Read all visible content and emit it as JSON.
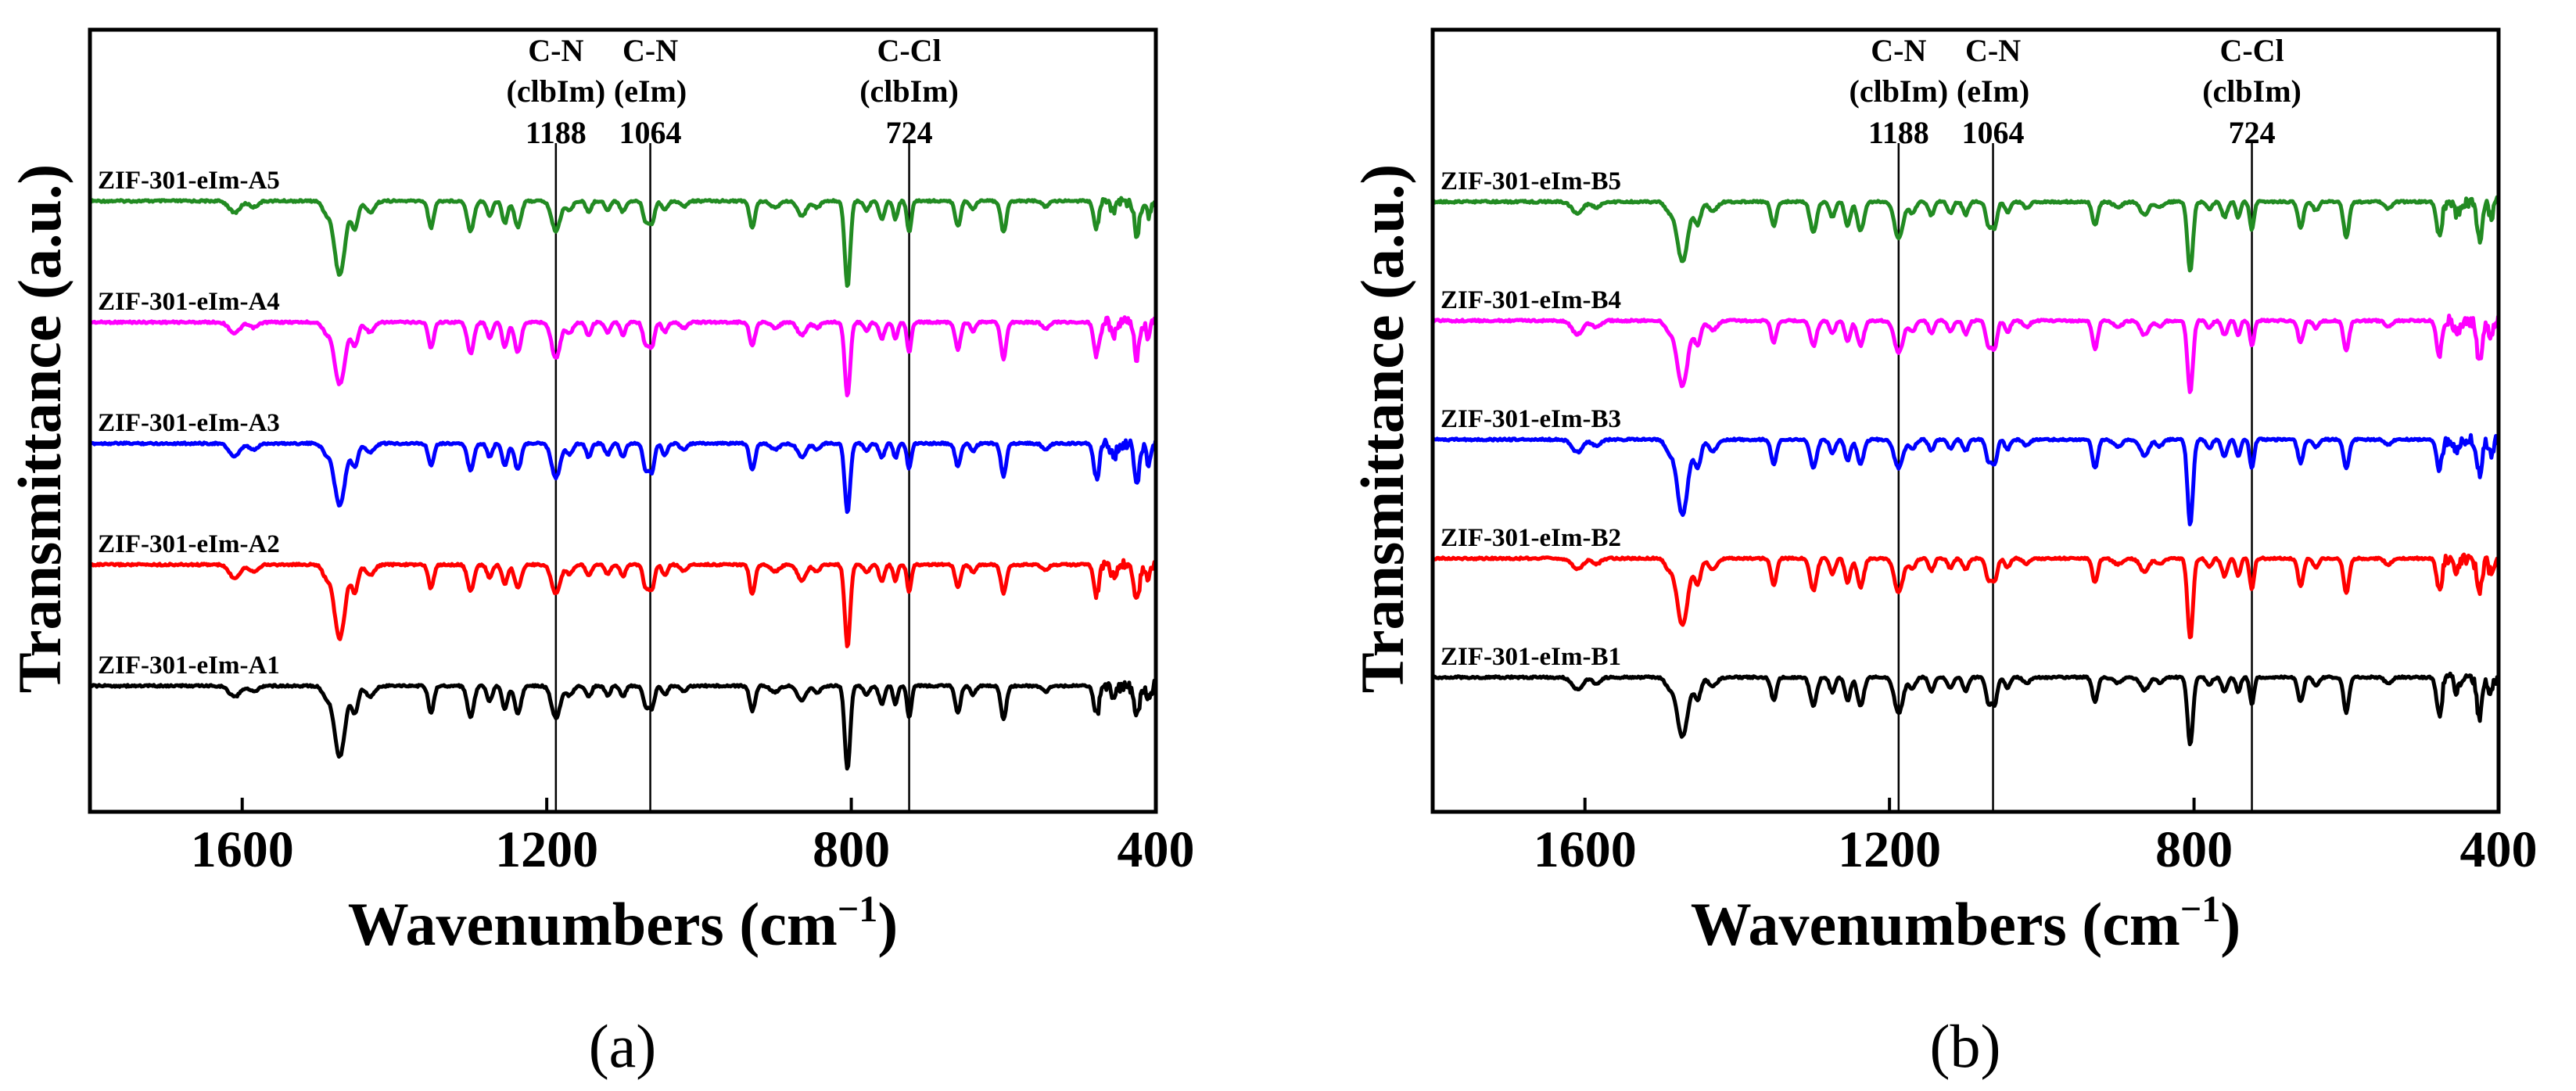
{
  "panel_labels": [
    "(a)",
    "(b)"
  ],
  "axis": {
    "xlabel": "Wavenumbers (cm",
    "xlabel_sup": "−1",
    "xlabel_close": ")",
    "ylabel": "Transmittance (a.u.)"
  },
  "annotations": [
    {
      "line1": "C-N",
      "line2": "(clbIm)",
      "line3": "1188",
      "x": 1188
    },
    {
      "line1": "C-N",
      "line2": "(eIm)",
      "line3": "1064",
      "x": 1064
    },
    {
      "line1": "C-Cl",
      "line2": "(clbIm)",
      "line3": "724",
      "x": 724
    }
  ],
  "chart_data": [
    {
      "type": "line",
      "panel": "a",
      "xlabel": "Wavenumbers (cm−1)",
      "ylabel": "Transmittance (a.u.)",
      "xlim": [
        1800,
        400
      ],
      "xticks": [
        1600,
        1200,
        800,
        400
      ],
      "reference_lines": [
        1188,
        1064,
        724
      ],
      "series": [
        {
          "name": "ZIF-301-eIm-A5",
          "color": "#228b22",
          "offset": 4
        },
        {
          "name": "ZIF-301-eIm-A4",
          "color": "#ff00ff",
          "offset": 3
        },
        {
          "name": "ZIF-301-eIm-A3",
          "color": "#0000ff",
          "offset": 2
        },
        {
          "name": "ZIF-301-eIm-A2",
          "color": "#ff0000",
          "offset": 1
        },
        {
          "name": "ZIF-301-eIm-A1",
          "color": "#000000",
          "offset": 0
        }
      ]
    },
    {
      "type": "line",
      "panel": "b",
      "xlabel": "Wavenumbers (cm−1)",
      "ylabel": "Transmittance (a.u.)",
      "xlim": [
        1800,
        400
      ],
      "xticks": [
        1600,
        1200,
        800,
        400
      ],
      "reference_lines": [
        1188,
        1064,
        724
      ],
      "series": [
        {
          "name": "ZIF-301-eIm-B5",
          "color": "#228b22",
          "offset": 4
        },
        {
          "name": "ZIF-301-eIm-B4",
          "color": "#ff00ff",
          "offset": 3
        },
        {
          "name": "ZIF-301-eIm-B3",
          "color": "#0000ff",
          "offset": 2
        },
        {
          "name": "ZIF-301-eIm-B2",
          "color": "#ff0000",
          "offset": 1
        },
        {
          "name": "ZIF-301-eIm-B1",
          "color": "#000000",
          "offset": 0
        }
      ]
    }
  ],
  "peaks": [
    {
      "x": 1610,
      "depth": 0.6,
      "width": 10
    },
    {
      "x": 1585,
      "depth": 0.3,
      "width": 8
    },
    {
      "x": 1490,
      "depth": 0.5,
      "width": 7
    },
    {
      "x": 1472,
      "depth": 3.3,
      "width": 10
    },
    {
      "x": 1452,
      "depth": 1.2,
      "width": 6
    },
    {
      "x": 1432,
      "depth": 0.5,
      "width": 8
    },
    {
      "x": 1352,
      "depth": 1.2,
      "width": 5
    },
    {
      "x": 1300,
      "depth": 1.4,
      "width": 6
    },
    {
      "x": 1275,
      "depth": 0.7,
      "width": 5
    },
    {
      "x": 1255,
      "depth": 1.1,
      "width": 5
    },
    {
      "x": 1238,
      "depth": 1.3,
      "width": 6
    },
    {
      "x": 1188,
      "depth": 1.6,
      "width": 8
    },
    {
      "x": 1170,
      "depth": 0.5,
      "width": 6
    },
    {
      "x": 1145,
      "depth": 0.6,
      "width": 5
    },
    {
      "x": 1120,
      "depth": 0.5,
      "width": 5
    },
    {
      "x": 1100,
      "depth": 0.6,
      "width": 5
    },
    {
      "x": 1070,
      "depth": 1.1,
      "width": 5
    },
    {
      "x": 1062,
      "depth": 1.2,
      "width": 5
    },
    {
      "x": 1045,
      "depth": 0.5,
      "width": 5
    },
    {
      "x": 1020,
      "depth": 0.3,
      "width": 6
    },
    {
      "x": 930,
      "depth": 1.3,
      "width": 5
    },
    {
      "x": 900,
      "depth": 0.3,
      "width": 8
    },
    {
      "x": 865,
      "depth": 0.7,
      "width": 8
    },
    {
      "x": 845,
      "depth": 0.3,
      "width": 6
    },
    {
      "x": 805,
      "depth": 3.8,
      "width": 5
    },
    {
      "x": 780,
      "depth": 0.4,
      "width": 5
    },
    {
      "x": 760,
      "depth": 0.8,
      "width": 5
    },
    {
      "x": 742,
      "depth": 0.8,
      "width": 4
    },
    {
      "x": 724,
      "depth": 1.4,
      "width": 4
    },
    {
      "x": 660,
      "depth": 1.2,
      "width": 5
    },
    {
      "x": 640,
      "depth": 0.4,
      "width": 5
    },
    {
      "x": 600,
      "depth": 1.6,
      "width": 5
    },
    {
      "x": 545,
      "depth": 0.3,
      "width": 6
    },
    {
      "x": 478,
      "depth": 1.6,
      "width": 5
    },
    {
      "x": 455,
      "depth": 0.6,
      "width": 5
    },
    {
      "x": 425,
      "depth": 1.8,
      "width": 5
    },
    {
      "x": 410,
      "depth": 0.8,
      "width": 4
    }
  ]
}
